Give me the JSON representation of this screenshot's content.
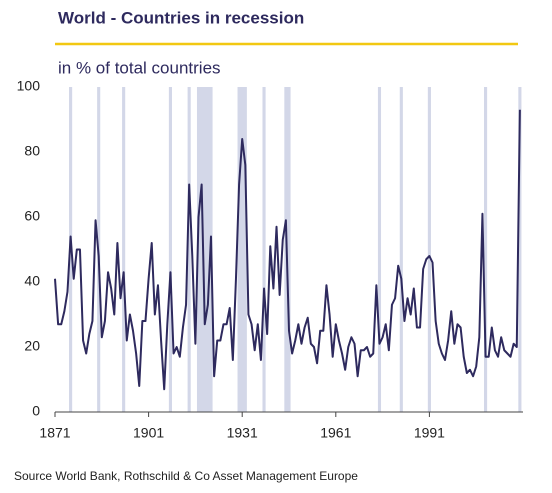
{
  "chart_data": {
    "type": "line",
    "title": "World - Countries in recession",
    "subtitle": "in % of total countries",
    "source": "Source World Bank, Rothschild & Co Asset Management Europe",
    "color": "#2e2a5e",
    "band_color": "#d3d7e8",
    "shaded_periods": [
      [
        1876,
        1876
      ],
      [
        1885,
        1885
      ],
      [
        1893,
        1893
      ],
      [
        1908,
        1908
      ],
      [
        1914,
        1914
      ],
      [
        1917,
        1921
      ],
      [
        1930,
        1932
      ],
      [
        1938,
        1938
      ],
      [
        1945,
        1946
      ],
      [
        1975,
        1975
      ],
      [
        1982,
        1982
      ],
      [
        1991,
        1991
      ],
      [
        2009,
        2009
      ],
      [
        2020,
        2020
      ]
    ],
    "x": [
      1871,
      1872,
      1873,
      1874,
      1875,
      1876,
      1877,
      1878,
      1879,
      1880,
      1881,
      1882,
      1883,
      1884,
      1885,
      1886,
      1887,
      1888,
      1889,
      1890,
      1891,
      1892,
      1893,
      1894,
      1895,
      1896,
      1897,
      1898,
      1899,
      1900,
      1901,
      1902,
      1903,
      1904,
      1905,
      1906,
      1907,
      1908,
      1909,
      1910,
      1911,
      1912,
      1913,
      1914,
      1915,
      1916,
      1917,
      1918,
      1919,
      1920,
      1921,
      1922,
      1923,
      1924,
      1925,
      1926,
      1927,
      1928,
      1929,
      1930,
      1931,
      1932,
      1933,
      1934,
      1935,
      1936,
      1937,
      1938,
      1939,
      1940,
      1941,
      1942,
      1943,
      1944,
      1945,
      1946,
      1947,
      1948,
      1949,
      1950,
      1951,
      1952,
      1953,
      1954,
      1955,
      1956,
      1957,
      1958,
      1959,
      1960,
      1961,
      1962,
      1963,
      1964,
      1965,
      1966,
      1967,
      1968,
      1969,
      1970,
      1971,
      1972,
      1973,
      1974,
      1975,
      1976,
      1977,
      1978,
      1979,
      1980,
      1981,
      1982,
      1983,
      1984,
      1985,
      1986,
      1987,
      1988,
      1989,
      1990,
      1991,
      1992,
      1993,
      1994,
      1995,
      1996,
      1997,
      1998,
      1999,
      2000,
      2001,
      2002,
      2003,
      2004,
      2005,
      2006,
      2007,
      2008,
      2009,
      2010,
      2011,
      2012,
      2013,
      2014,
      2015,
      2016,
      2017,
      2018,
      2019,
      2020
    ],
    "values": [
      41,
      27,
      27,
      31,
      37,
      54,
      41,
      50,
      50,
      22,
      18,
      24,
      28,
      59,
      48,
      23,
      28,
      43,
      38,
      30,
      52,
      35,
      43,
      22,
      30,
      25,
      18,
      8,
      28,
      28,
      41,
      52,
      30,
      39,
      22,
      7,
      27,
      43,
      18,
      20,
      17,
      26,
      33,
      70,
      48,
      21,
      60,
      70,
      27,
      33,
      54,
      11,
      22,
      22,
      27,
      27,
      32,
      16,
      41,
      70,
      84,
      76,
      30,
      27,
      19,
      27,
      16,
      38,
      24,
      51,
      38,
      57,
      36,
      53,
      59,
      25,
      18,
      22,
      27,
      21,
      26,
      29,
      21,
      20,
      15,
      25,
      25,
      39,
      30,
      17,
      27,
      22,
      18,
      13,
      20,
      23,
      21,
      11,
      19,
      19,
      20,
      17,
      18,
      39,
      21,
      23,
      27,
      19,
      33,
      35,
      45,
      41,
      28,
      35,
      30,
      38,
      26,
      26,
      44,
      47,
      48,
      46,
      28,
      21,
      18,
      16,
      22,
      31,
      21,
      27,
      26,
      17,
      12,
      13,
      11,
      14,
      23,
      61,
      17,
      17,
      26,
      19,
      17,
      23,
      19,
      18,
      17,
      21,
      20,
      93
    ],
    "xlim": [
      1871,
      2021
    ],
    "xticks": [
      1871,
      1901,
      1931,
      1961,
      1991
    ],
    "ylim": [
      0,
      100
    ],
    "yticks": [
      0,
      20,
      40,
      60,
      80,
      100
    ]
  }
}
